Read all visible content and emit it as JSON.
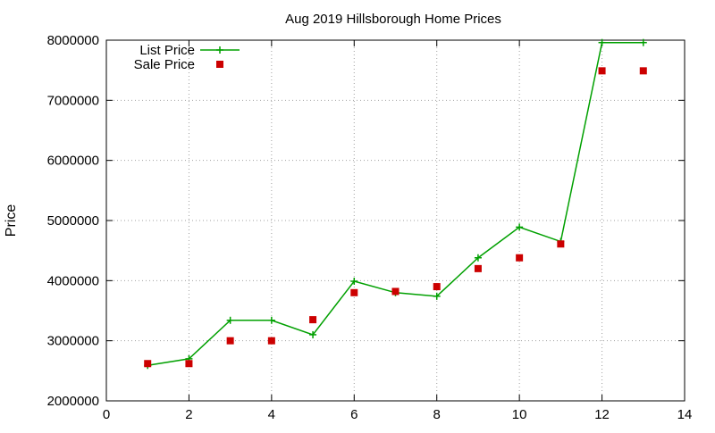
{
  "chart_data": {
    "type": "line",
    "title": "Aug 2019 Hillsborough Home Prices",
    "xlabel": "",
    "ylabel": "Price",
    "xlim": [
      0,
      14
    ],
    "ylim": [
      2000000,
      8000000
    ],
    "x_ticks": [
      "0",
      "2",
      "4",
      "6",
      "8",
      "10",
      "12",
      "14"
    ],
    "y_ticks": [
      "2000000",
      "3000000",
      "4000000",
      "5000000",
      "6000000",
      "7000000",
      "8000000"
    ],
    "grid": true,
    "legend_position": "top-left",
    "series": [
      {
        "name": "List Price",
        "style": "line-points",
        "marker": "plus",
        "color": "#00a000",
        "x": [
          1,
          2,
          3,
          4,
          5,
          6,
          7,
          8,
          9,
          10,
          11,
          12,
          13
        ],
        "y": [
          2590000,
          2700000,
          3340000,
          3340000,
          3100000,
          3990000,
          3800000,
          3740000,
          4380000,
          4890000,
          4650000,
          7960000,
          7960000
        ]
      },
      {
        "name": "Sale Price",
        "style": "points",
        "marker": "square",
        "color": "#cc0000",
        "x": [
          1,
          2,
          3,
          4,
          5,
          6,
          7,
          8,
          9,
          10,
          11,
          12,
          13
        ],
        "y": [
          2620000,
          2620000,
          3000000,
          3000000,
          3350000,
          3800000,
          3820000,
          3900000,
          4200000,
          4380000,
          4610000,
          7490000,
          7490000
        ]
      }
    ]
  }
}
